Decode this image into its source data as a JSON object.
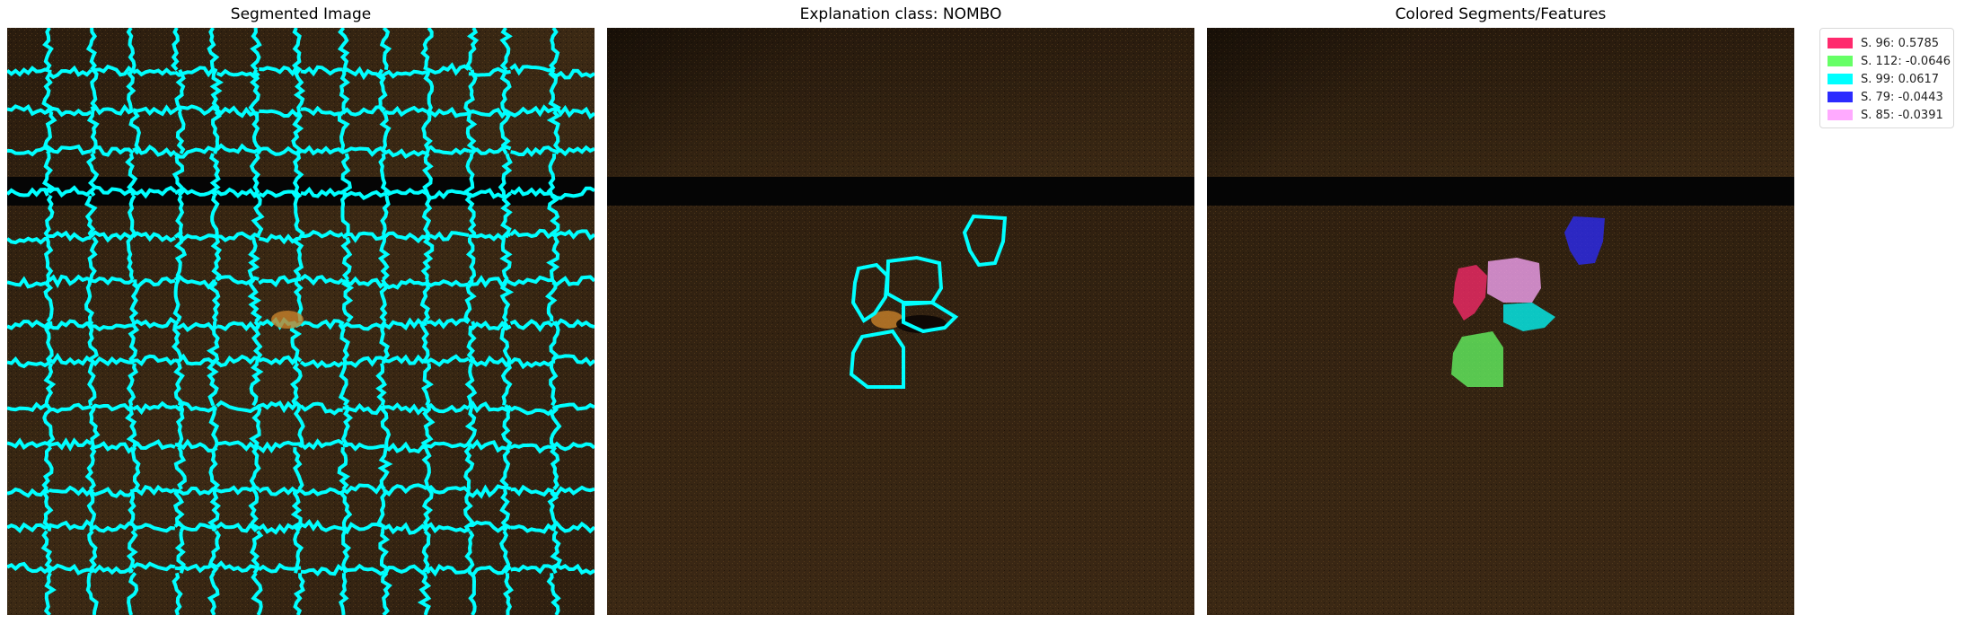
{
  "panels": [
    {
      "title": "Segmented Image"
    },
    {
      "title": "Explanation class: NOMBO"
    },
    {
      "title": "Colored Segments/Features"
    }
  ],
  "chart_data": {
    "type": "image-explanation",
    "legend_placement": "right",
    "legend": [
      {
        "label": "S. 96: 0.5785",
        "segment": 96,
        "weight": 0.5785,
        "color": "#ff2a6d"
      },
      {
        "label": "S. 112: -0.0646",
        "segment": 112,
        "weight": -0.0646,
        "color": "#66ff66"
      },
      {
        "label": "S. 99: 0.0617",
        "segment": 99,
        "weight": 0.0617,
        "color": "#00ffff"
      },
      {
        "label": "S. 79: -0.0443",
        "segment": 79,
        "weight": -0.0443,
        "color": "#2b2bff"
      },
      {
        "label": "S. 85: -0.0391",
        "segment": 85,
        "weight": -0.0391,
        "color": "#ffaaff"
      }
    ],
    "colors": {
      "segment_boundary": "#00ffff",
      "background_texture": "#3a2612",
      "band": "#050505"
    }
  }
}
